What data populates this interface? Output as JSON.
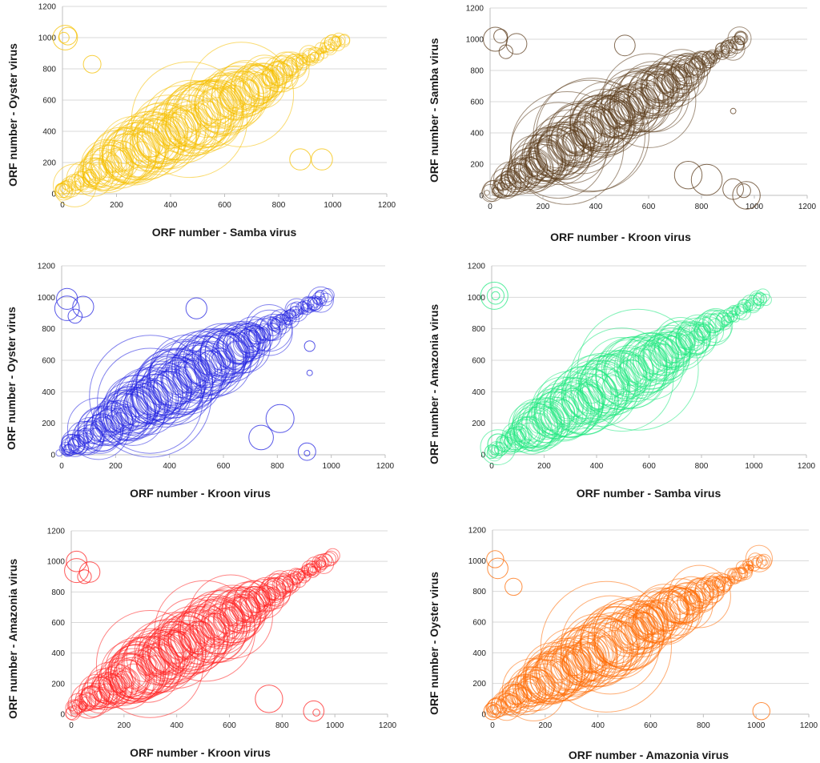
{
  "chart_data": [
    {
      "type": "scatter",
      "xlabel": "ORF number - Samba virus",
      "ylabel": "ORF number - Oyster virus",
      "xlim": [
        0,
        1200
      ],
      "ylim": [
        0,
        1200
      ],
      "xticks": [
        "0",
        "200",
        "400",
        "600",
        "800",
        "1000",
        "1200"
      ],
      "yticks": [
        "0",
        "200",
        "400",
        "600",
        "800",
        "1000",
        "1200"
      ],
      "color": "#f5c000",
      "diagonal": {
        "x_start": 0,
        "x_end": 1040,
        "y_start": 20,
        "y_end": 990
      },
      "outliers": [
        {
          "x": 10,
          "y": 1000,
          "r": 35
        },
        {
          "x": 20,
          "y": 1010,
          "r": 25
        },
        {
          "x": 5,
          "y": 1000,
          "r": 15
        },
        {
          "x": 110,
          "y": 830,
          "r": 25
        },
        {
          "x": 880,
          "y": 220,
          "r": 30
        },
        {
          "x": 960,
          "y": 220,
          "r": 30
        },
        {
          "x": 0,
          "y": 20,
          "r": 20
        }
      ]
    },
    {
      "type": "scatter",
      "xlabel": "ORF number - Kroon virus",
      "ylabel": "ORF number - Samba virus",
      "xlim": [
        0,
        1200
      ],
      "ylim": [
        0,
        1200
      ],
      "xticks": [
        "0",
        "200",
        "400",
        "600",
        "800",
        "1000",
        "1200"
      ],
      "yticks": [
        "0",
        "200",
        "400",
        "600",
        "800",
        "1000",
        "1200"
      ],
      "color": "#5a3a1a",
      "diagonal": {
        "x_start": 0,
        "x_end": 960,
        "y_start": 20,
        "y_end": 1010
      },
      "outliers": [
        {
          "x": 20,
          "y": 1000,
          "r": 35
        },
        {
          "x": 40,
          "y": 1020,
          "r": 20
        },
        {
          "x": 60,
          "y": 920,
          "r": 20
        },
        {
          "x": 100,
          "y": 970,
          "r": 30
        },
        {
          "x": 510,
          "y": 960,
          "r": 30
        },
        {
          "x": 920,
          "y": 540,
          "r": 8
        },
        {
          "x": 750,
          "y": 130,
          "r": 40
        },
        {
          "x": 820,
          "y": 100,
          "r": 45
        },
        {
          "x": 920,
          "y": 40,
          "r": 30
        },
        {
          "x": 970,
          "y": 0,
          "r": 40
        },
        {
          "x": 960,
          "y": 30,
          "r": 20
        }
      ]
    },
    {
      "type": "scatter",
      "xlabel": "ORF number - Kroon virus",
      "ylabel": "ORF number - Oyster virus",
      "xlim": [
        0,
        1200
      ],
      "ylim": [
        0,
        1200
      ],
      "xticks": [
        "0",
        "200",
        "400",
        "600",
        "800",
        "1000",
        "1200"
      ],
      "yticks": [
        "0",
        "200",
        "400",
        "600",
        "800",
        "1000",
        "1200"
      ],
      "color": "#2020e0",
      "diagonal": {
        "x_start": 0,
        "x_end": 980,
        "y_start": 20,
        "y_end": 1010
      },
      "outliers": [
        {
          "x": 20,
          "y": 990,
          "r": 30
        },
        {
          "x": 20,
          "y": 930,
          "r": 35
        },
        {
          "x": 80,
          "y": 940,
          "r": 30
        },
        {
          "x": 50,
          "y": 880,
          "r": 20
        },
        {
          "x": 500,
          "y": 930,
          "r": 30
        },
        {
          "x": 920,
          "y": 690,
          "r": 15
        },
        {
          "x": 920,
          "y": 520,
          "r": 8
        },
        {
          "x": 810,
          "y": 230,
          "r": 40
        },
        {
          "x": 740,
          "y": 110,
          "r": 35
        },
        {
          "x": 910,
          "y": 20,
          "r": 25
        },
        {
          "x": 910,
          "y": 10,
          "r": 8
        }
      ]
    },
    {
      "type": "scatter",
      "xlabel": "ORF number - Samba virus",
      "ylabel": "ORF number - Amazonia virus",
      "xlim": [
        0,
        1200
      ],
      "ylim": [
        0,
        1200
      ],
      "xticks": [
        "0",
        "200",
        "400",
        "600",
        "800",
        "1000",
        "1200"
      ],
      "yticks": [
        "0",
        "200",
        "400",
        "600",
        "800",
        "1000",
        "1200"
      ],
      "color": "#20e880",
      "diagonal": {
        "x_start": 0,
        "x_end": 1040,
        "y_start": 20,
        "y_end": 1000
      },
      "outliers": [
        {
          "x": 10,
          "y": 1010,
          "r": 40
        },
        {
          "x": 15,
          "y": 1010,
          "r": 25
        },
        {
          "x": 15,
          "y": 1010,
          "r": 12
        },
        {
          "x": 0,
          "y": 20,
          "r": 20
        }
      ]
    },
    {
      "type": "scatter",
      "xlabel": "ORF number - Kroon virus",
      "ylabel": "ORF number - Amazonia virus",
      "xlim": [
        0,
        1200
      ],
      "ylim": [
        0,
        1200
      ],
      "xticks": [
        "0",
        "200",
        "400",
        "600",
        "800",
        "1000",
        "1200"
      ],
      "yticks": [
        "0",
        "200",
        "400",
        "600",
        "800",
        "1000",
        "1200"
      ],
      "color": "#ff2020",
      "diagonal": {
        "x_start": 0,
        "x_end": 980,
        "y_start": 20,
        "y_end": 1020
      },
      "outliers": [
        {
          "x": 20,
          "y": 1000,
          "r": 30
        },
        {
          "x": 20,
          "y": 940,
          "r": 35
        },
        {
          "x": 70,
          "y": 930,
          "r": 30
        },
        {
          "x": 50,
          "y": 900,
          "r": 20
        },
        {
          "x": 750,
          "y": 100,
          "r": 40
        },
        {
          "x": 920,
          "y": 20,
          "r": 30
        },
        {
          "x": 930,
          "y": 10,
          "r": 10
        }
      ]
    },
    {
      "type": "scatter",
      "xlabel": "ORF number - Amazonia virus",
      "ylabel": "ORF number - Oyster virus",
      "xlim": [
        0,
        1200
      ],
      "ylim": [
        0,
        1200
      ],
      "xticks": [
        "0",
        "200",
        "400",
        "600",
        "800",
        "1000",
        "1200"
      ],
      "yticks": [
        "0",
        "200",
        "400",
        "600",
        "800",
        "1000",
        "1200"
      ],
      "color": "#ff6a00",
      "diagonal": {
        "x_start": 0,
        "x_end": 1030,
        "y_start": 20,
        "y_end": 1010
      },
      "outliers": [
        {
          "x": 10,
          "y": 1010,
          "r": 25
        },
        {
          "x": 20,
          "y": 950,
          "r": 30
        },
        {
          "x": 80,
          "y": 830,
          "r": 25
        },
        {
          "x": 1020,
          "y": 20,
          "r": 25
        },
        {
          "x": 0,
          "y": 20,
          "r": 25
        }
      ]
    }
  ]
}
